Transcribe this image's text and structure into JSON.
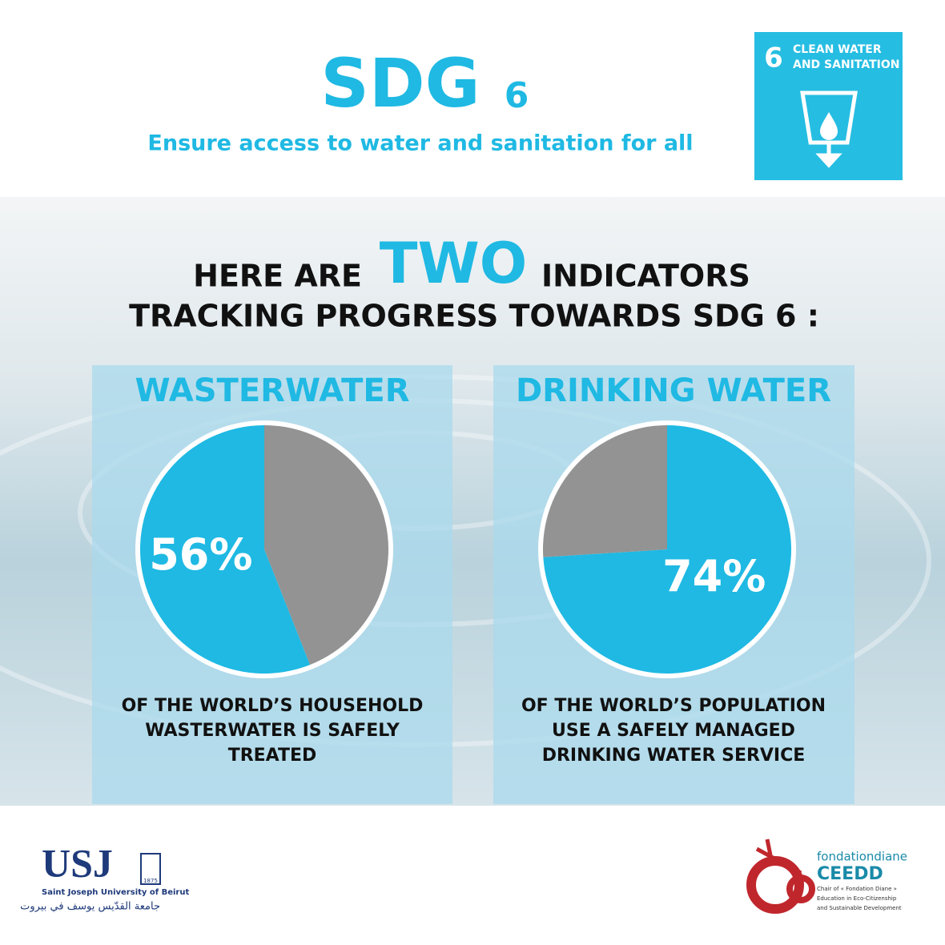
{
  "header": {
    "title": "SDG",
    "number": "6",
    "subtitle": "Ensure access to water and sanitation for all"
  },
  "badge": {
    "number": "6",
    "lines": [
      "CLEAN WATER",
      "AND SANITATION"
    ]
  },
  "headline": {
    "before": "HERE ARE",
    "emphasis": "TWO",
    "after": "INDICATORS",
    "line2": "TRACKING PROGRESS TOWARDS SDG 6 :"
  },
  "chart_data": [
    {
      "type": "pie",
      "title": "WASTERWATER",
      "values": [
        44,
        56
      ],
      "value_labels": [
        null,
        "56%"
      ],
      "colors": [
        "#939393",
        "#1fb9e3"
      ],
      "caption": [
        "OF THE WORLD’S HOUSEHOLD",
        "WASTERWATER IS SAFELY",
        "TREATED"
      ]
    },
    {
      "type": "pie",
      "title": "DRINKING WATER",
      "values": [
        74,
        26
      ],
      "value_labels": [
        "74%",
        null
      ],
      "colors": [
        "#1fb9e3",
        "#939393"
      ],
      "caption": [
        "OF THE WORLD’S POPULATION",
        "USE A SAFELY MANAGED",
        "DRINKING WATER SERVICE"
      ]
    }
  ],
  "footer": {
    "usj": "USJ",
    "usj_year": "1875",
    "usj_name": "Saint Joseph University of Beirut",
    "usj_arabic": "جامعة القدّيس يوسف في بيروت",
    "fondation": "fondationdiane",
    "ceedd": "CEEDD",
    "ceedd_lines": [
      "Chair of « Fondation Diane »",
      "Education in Eco-Citizenship",
      "and Sustainable Development"
    ]
  }
}
